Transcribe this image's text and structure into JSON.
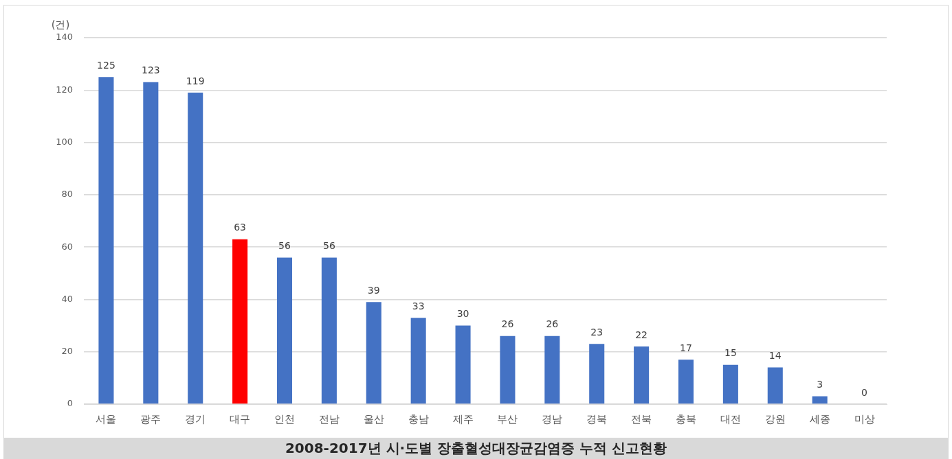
{
  "chart_data": {
    "type": "bar",
    "title": "2008-2017년 시·도별 장출혈성대장균감염증 누적 신고현황",
    "ylabel": "(건)",
    "categories": [
      "서울",
      "광주",
      "경기",
      "대구",
      "인천",
      "전남",
      "울산",
      "충남",
      "제주",
      "부산",
      "경남",
      "경북",
      "전북",
      "충북",
      "대전",
      "강원",
      "세종",
      "미상"
    ],
    "values": [
      125,
      123,
      119,
      63,
      56,
      56,
      39,
      33,
      30,
      26,
      26,
      23,
      22,
      17,
      15,
      14,
      3,
      0
    ],
    "colors": [
      "#4472c4",
      "#4472c4",
      "#4472c4",
      "#ff0000",
      "#4472c4",
      "#4472c4",
      "#4472c4",
      "#4472c4",
      "#4472c4",
      "#4472c4",
      "#4472c4",
      "#4472c4",
      "#4472c4",
      "#4472c4",
      "#4472c4",
      "#4472c4",
      "#4472c4",
      "#4472c4"
    ],
    "ylim": [
      0,
      140
    ],
    "yticks": [
      0,
      20,
      40,
      60,
      80,
      100,
      120,
      140
    ],
    "grid": "y",
    "data_labels": true
  }
}
